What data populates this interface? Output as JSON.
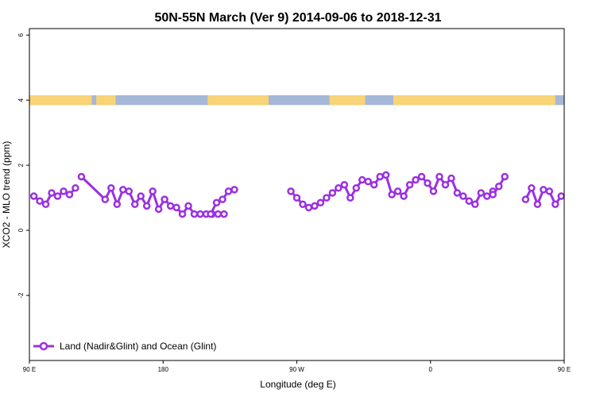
{
  "chart_data": {
    "type": "line",
    "title": "50N-55N March (Ver 9)   2014-09-06 to 2018-12-31",
    "xlabel": "Longitude (deg E)",
    "ylabel": "XCO2 - MLO trend (ppm)",
    "xlim": [
      90,
      450
    ],
    "ylim": [
      -4,
      6.2
    ],
    "x_ticks": [
      {
        "value": 90,
        "label": "90 E"
      },
      {
        "value": 180,
        "label": "180"
      },
      {
        "value": 270,
        "label": "90 W"
      },
      {
        "value": 360,
        "label": "0"
      },
      {
        "value": 450,
        "label": "90 E"
      },
      {
        "value": 540,
        "label": "180"
      }
    ],
    "y_ticks": [
      {
        "value": -2,
        "label": "-2"
      },
      {
        "value": 0,
        "label": "0"
      },
      {
        "value": 2,
        "label": "2"
      },
      {
        "value": 4,
        "label": "4"
      },
      {
        "value": 6,
        "label": "6"
      }
    ],
    "legend": {
      "position": "bottom-left"
    },
    "land_ocean_band": {
      "y_range": [
        3.85,
        4.15
      ],
      "ocean_color": "#a6b8d8",
      "land_color": "#f8d477",
      "land_segments_lon": [
        [
          90,
          132
        ],
        [
          135,
          148
        ],
        [
          210,
          251
        ],
        [
          292,
          316
        ],
        [
          335,
          444
        ],
        [
          457,
          558
        ],
        [
          562,
          570
        ]
      ]
    },
    "series": [
      {
        "name": "Land (Nadir&Glint) and Ocean (Glint)",
        "color": "#9b30e0",
        "segments": [
          {
            "x": [
              93,
              97,
              101,
              105,
              109,
              113,
              117,
              121
            ],
            "y": [
              1.05,
              0.9,
              0.8,
              1.15,
              1.05,
              1.2,
              1.1,
              1.3
            ]
          },
          {
            "x": [
              125,
              141,
              145,
              149,
              153,
              157,
              161,
              165,
              169,
              173,
              177,
              181,
              185,
              189,
              193,
              197,
              201,
              205,
              209,
              213,
              217,
              221
            ],
            "y": [
              1.65,
              0.95,
              1.3,
              0.8,
              1.25,
              1.2,
              0.8,
              1.05,
              0.75,
              1.2,
              0.65,
              0.95,
              0.75,
              0.7,
              0.5,
              0.75,
              0.5,
              0.5,
              0.5,
              0.5,
              0.5,
              0.5
            ]
          },
          {
            "x": [
              212,
              216,
              220,
              224,
              228
            ],
            "y": [
              0.5,
              0.85,
              0.95,
              1.2,
              1.25
            ]
          },
          {
            "x": [
              266,
              270,
              274,
              278,
              282,
              286,
              290,
              294,
              298,
              302,
              306,
              310,
              314,
              318,
              322,
              326,
              330,
              334,
              338,
              342,
              346,
              350,
              354,
              358,
              362,
              366,
              370,
              374,
              378,
              382,
              386,
              390,
              394,
              398,
              402
            ],
            "y": [
              1.2,
              1.0,
              0.8,
              0.7,
              0.75,
              0.85,
              1.0,
              1.15,
              1.3,
              1.4,
              1.0,
              1.3,
              1.55,
              1.5,
              1.4,
              1.65,
              1.7,
              1.1,
              1.2,
              1.05,
              1.4,
              1.55,
              1.65,
              1.45,
              1.2,
              1.65,
              1.4,
              1.6,
              1.15,
              1.05,
              0.9,
              0.8,
              1.15,
              1.05,
              1.2
            ]
          },
          {
            "x": [
              402,
              406,
              410
            ],
            "y": [
              1.1,
              1.35,
              1.65
            ]
          },
          {
            "x": [
              424,
              428,
              432,
              436,
              440,
              444,
              448
            ],
            "y": [
              0.95,
              1.3,
              0.8,
              1.25,
              1.2,
              0.8,
              1.05
            ]
          }
        ]
      }
    ]
  }
}
